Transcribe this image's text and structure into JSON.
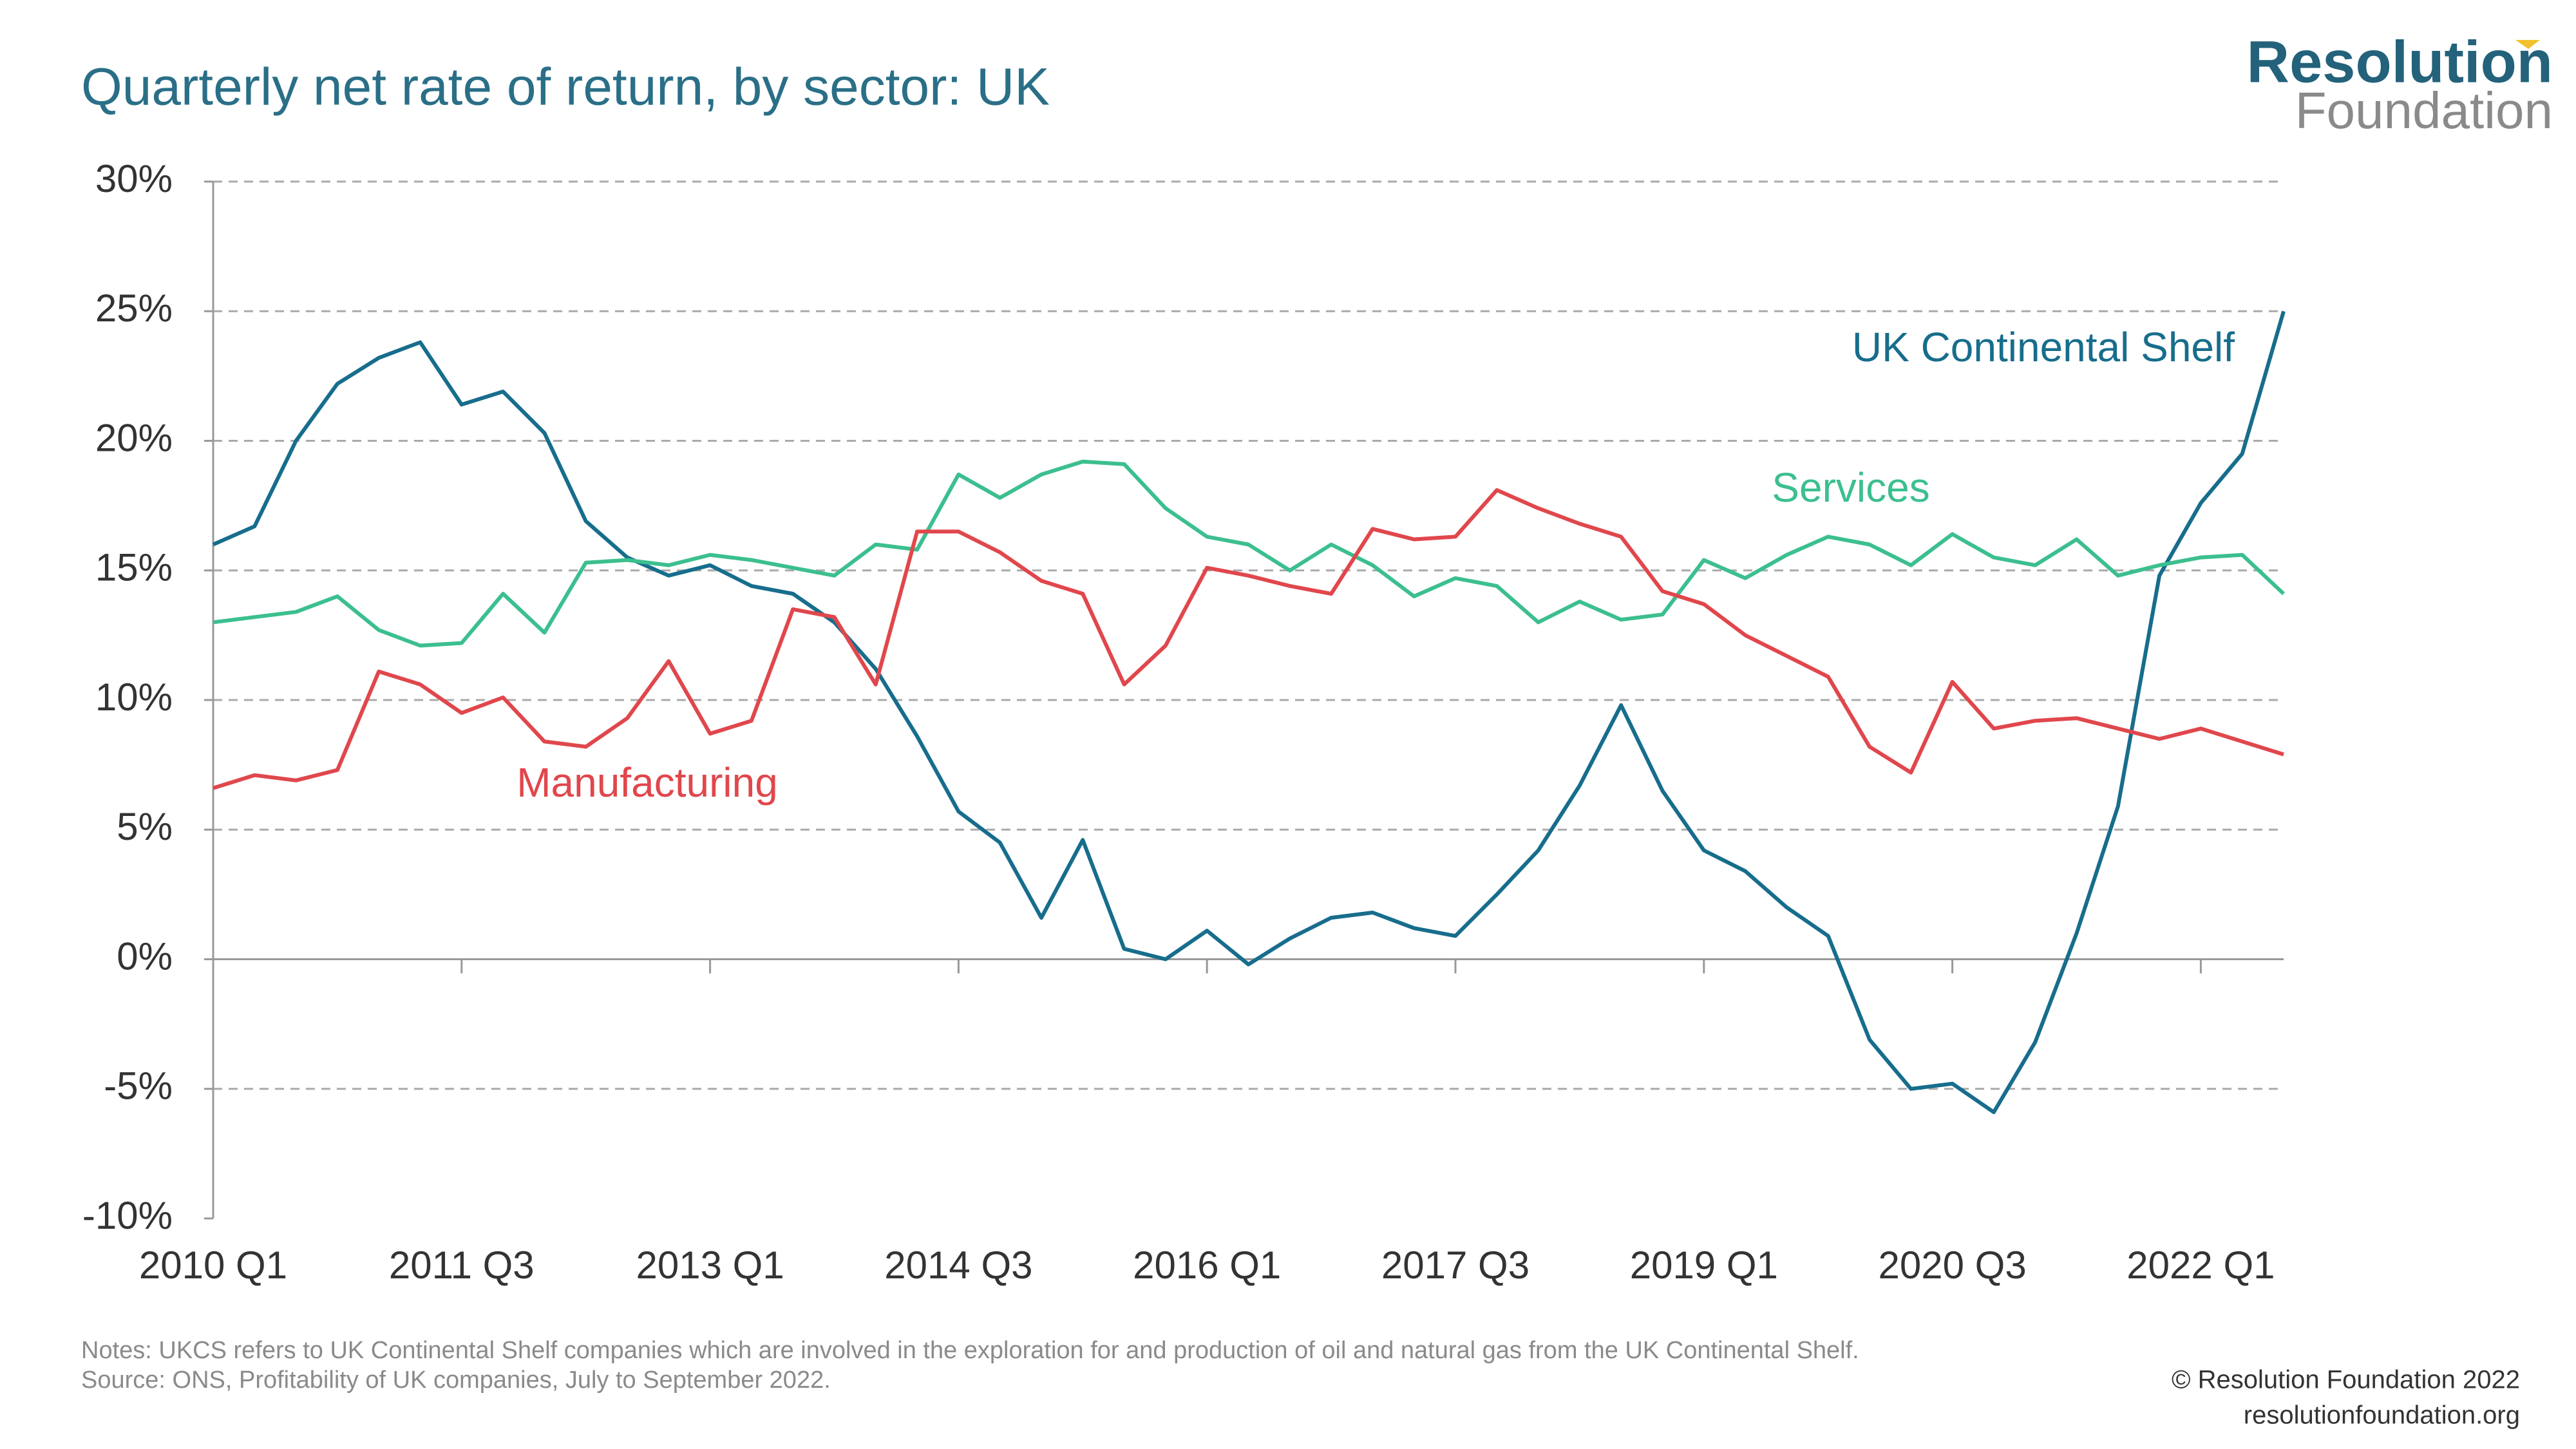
{
  "chart_data": {
    "type": "line",
    "title": "Quarterly net rate of return, by sector: UK",
    "logo": [
      "Resolution",
      "Foundation"
    ],
    "notes": [
      "Notes: UKCS refers to UK Continental Shelf companies which are involved in the exploration for and production of oil and natural gas from the UK Continental Shelf.",
      "Source: ONS, Profitability of UK companies, July to September 2022."
    ],
    "credits": [
      "© Resolution Foundation 2022",
      "resolutionfoundation.org"
    ],
    "categories": [
      "2010 Q1",
      null,
      null,
      null,
      null,
      null,
      "2011 Q3",
      null,
      null,
      null,
      null,
      null,
      "2013 Q1",
      null,
      null,
      null,
      null,
      null,
      "2014 Q3",
      null,
      null,
      null,
      null,
      null,
      "2016 Q1",
      null,
      null,
      null,
      null,
      null,
      "2017 Q3",
      null,
      null,
      null,
      null,
      null,
      "2019 Q1",
      null,
      null,
      null,
      null,
      null,
      "2020 Q3",
      null,
      null,
      null,
      null,
      null,
      "2022 Q1",
      null,
      null
    ],
    "series": [
      {
        "name": "UK Continental Shelf",
        "color": "#176d8c",
        "values": [
          16.0,
          16.7,
          20.0,
          22.2,
          23.2,
          23.8,
          21.4,
          21.9,
          20.3,
          16.9,
          15.5,
          14.8,
          15.2,
          14.4,
          14.1,
          13.0,
          11.2,
          8.6,
          5.7,
          4.5,
          1.6,
          4.6,
          0.4,
          0.0,
          1.1,
          -0.2,
          0.8,
          1.6,
          1.8,
          1.2,
          0.9,
          2.5,
          4.2,
          6.7,
          9.8,
          6.5,
          4.2,
          3.4,
          2.0,
          0.9,
          -3.1,
          -5.0,
          -4.8,
          -5.9,
          -3.2,
          1.0,
          5.9,
          14.8,
          17.6,
          19.5,
          25.0
        ]
      },
      {
        "name": "Services",
        "color": "#3cbf8f",
        "values": [
          13.0,
          13.2,
          13.4,
          14.0,
          12.7,
          12.1,
          12.2,
          14.1,
          12.6,
          15.3,
          15.4,
          15.2,
          15.6,
          15.4,
          15.1,
          14.8,
          16.0,
          15.8,
          18.7,
          17.8,
          18.7,
          19.2,
          19.1,
          17.4,
          16.3,
          16.0,
          15.0,
          16.0,
          15.2,
          14.0,
          14.7,
          14.4,
          13.0,
          13.8,
          13.1,
          13.3,
          15.4,
          14.7,
          15.6,
          16.3,
          16.0,
          15.2,
          16.4,
          15.5,
          15.2,
          16.2,
          14.8,
          15.2,
          15.5,
          15.6,
          14.1
        ]
      },
      {
        "name": "Manufacturing",
        "color": "#e0474c",
        "values": [
          6.6,
          7.1,
          6.9,
          7.3,
          11.1,
          10.6,
          9.5,
          10.1,
          8.4,
          8.2,
          9.3,
          11.5,
          8.7,
          9.2,
          13.5,
          13.2,
          10.6,
          16.5,
          16.5,
          15.7,
          14.6,
          14.1,
          10.6,
          12.1,
          15.1,
          14.8,
          14.4,
          14.1,
          16.6,
          16.2,
          16.3,
          18.1,
          17.4,
          16.8,
          16.3,
          14.2,
          13.7,
          12.5,
          11.7,
          10.9,
          8.2,
          7.2,
          10.7,
          8.9,
          9.2,
          9.3,
          8.9,
          8.5,
          8.9,
          8.4,
          7.9
        ]
      }
    ],
    "ylim": [
      -10,
      30
    ],
    "yticks": [
      {
        "value": -10,
        "label": "-10%"
      },
      {
        "value": -5,
        "label": "-5%"
      },
      {
        "value": 0,
        "label": "0%"
      },
      {
        "value": 5,
        "label": "5%"
      },
      {
        "value": 10,
        "label": "10%"
      },
      {
        "value": 15,
        "label": "15%"
      },
      {
        "value": 20,
        "label": "20%"
      },
      {
        "value": 25,
        "label": "25%"
      },
      {
        "value": 30,
        "label": "30%"
      }
    ],
    "grid": true
  }
}
